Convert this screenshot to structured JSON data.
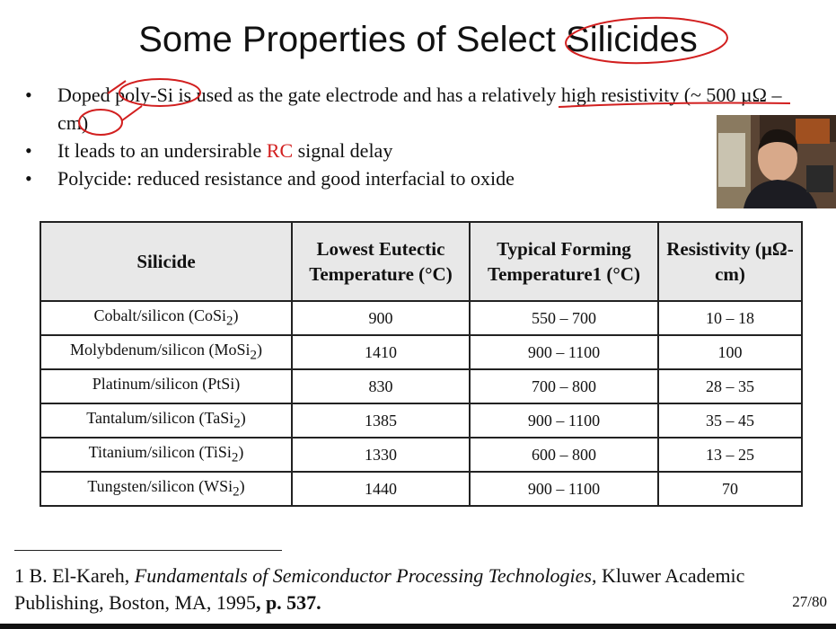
{
  "slide": {
    "title": "Some Properties of Select Silicides",
    "bullets": [
      {
        "parts": [
          "Doped poly-Si is used as the gate electrode and has a relatively high resistivity (~ 500 µΩ –cm)"
        ]
      },
      {
        "before": "It leads to an undersirable ",
        "highlight": "RC",
        "after": " signal delay"
      },
      {
        "parts": [
          "Polycide: reduced resistance and good interfacial to oxide"
        ]
      }
    ],
    "bullet_symbol": "•",
    "highlight_color": "#d21f1f"
  },
  "table": {
    "headers": [
      "Silicide",
      "Lowest Eutectic Temperature (°C)",
      "Typical Forming Temperature1 (°C)",
      "Resistivity (µΩ-cm)"
    ],
    "rows": [
      {
        "name": "Cobalt/silicon (CoSi",
        "sub": "2",
        "close": ")",
        "eutectic": "900",
        "forming": "550 – 700",
        "resistivity": "10 – 18"
      },
      {
        "name": "Molybdenum/silicon (MoSi",
        "sub": "2",
        "close": ")",
        "eutectic": "1410",
        "forming": "900 – 1100",
        "resistivity": "100"
      },
      {
        "name": "Platinum/silicon (PtSi)",
        "sub": "",
        "close": "",
        "eutectic": "830",
        "forming": "700 – 800",
        "resistivity": "28 – 35"
      },
      {
        "name": "Tantalum/silicon (TaSi",
        "sub": "2",
        "close": ")",
        "eutectic": "1385",
        "forming": "900 – 1100",
        "resistivity": "35 – 45"
      },
      {
        "name": "Titanium/silicon (TiSi",
        "sub": "2",
        "close": ")",
        "eutectic": "1330",
        "forming": "600 – 800",
        "resistivity": "13 – 25"
      },
      {
        "name": "Tungsten/silicon (WSi",
        "sub": "2",
        "close": ")",
        "eutectic": "1440",
        "forming": "900 – 1100",
        "resistivity": "70"
      }
    ]
  },
  "reference": {
    "prefix": "1 B. El-Kareh, ",
    "book": "Fundamentals of Semiconductor Processing Technologies",
    "middle": ", Kluwer Academic Publishing, Boston, MA, 1995",
    "pages": ", p. 537."
  },
  "page_number": "27/80",
  "annotation_color": "#d21f1f"
}
